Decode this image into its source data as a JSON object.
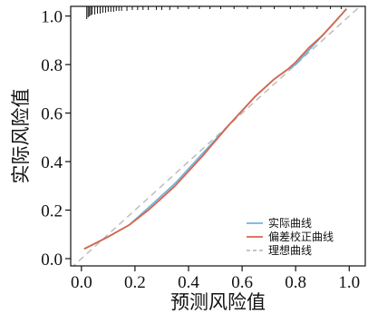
{
  "chart_data": {
    "type": "line",
    "title": "",
    "xlabel": "预测风险值",
    "ylabel": "实际风险值",
    "xlim": [
      -0.04,
      1.06
    ],
    "ylim": [
      -0.03,
      1.04
    ],
    "x_ticks": [
      "0.0",
      "0.2",
      "0.4",
      "0.6",
      "0.8",
      "1.0"
    ],
    "x_tick_values": [
      0.0,
      0.2,
      0.4,
      0.6,
      0.8,
      1.0
    ],
    "y_ticks": [
      "0.0",
      "0.2",
      "0.4",
      "0.6",
      "0.8",
      "1.0"
    ],
    "y_tick_values": [
      0.0,
      0.2,
      0.4,
      0.6,
      0.8,
      1.0
    ],
    "grid": false,
    "legend_position": "bottom-right",
    "series": [
      {
        "name": "实际曲线",
        "color": "#6fb3e0",
        "style": "solid",
        "x": [
          0.01,
          0.1,
          0.18,
          0.25,
          0.3,
          0.35,
          0.45,
          0.55,
          0.65,
          0.72,
          0.77,
          0.8,
          0.85,
          0.9,
          0.95,
          0.99
        ],
        "y": [
          0.04,
          0.09,
          0.14,
          0.21,
          0.26,
          0.31,
          0.43,
          0.55,
          0.67,
          0.74,
          0.78,
          0.8,
          0.86,
          0.92,
          0.98,
          1.03
        ]
      },
      {
        "name": "偏差校正曲线",
        "color": "#d9654b",
        "style": "solid",
        "x": [
          0.01,
          0.1,
          0.18,
          0.25,
          0.3,
          0.35,
          0.45,
          0.55,
          0.65,
          0.72,
          0.77,
          0.8,
          0.85,
          0.9,
          0.95,
          0.99
        ],
        "y": [
          0.04,
          0.09,
          0.14,
          0.2,
          0.25,
          0.3,
          0.42,
          0.55,
          0.67,
          0.74,
          0.78,
          0.81,
          0.87,
          0.92,
          0.98,
          1.03
        ]
      },
      {
        "name": "理想曲线",
        "color": "#bdbdbd",
        "style": "dashed",
        "x": [
          -0.04,
          1.06
        ],
        "y": [
          -0.04,
          1.06
        ]
      }
    ],
    "rug_x": [
      0.02,
      0.025,
      0.03,
      0.035,
      0.04,
      0.05,
      0.06,
      0.07,
      0.08,
      0.09,
      0.1,
      0.11,
      0.12,
      0.13,
      0.14,
      0.15,
      0.17,
      0.19,
      0.21,
      0.23,
      0.25,
      0.28,
      0.3,
      0.33,
      0.36,
      0.4,
      0.44,
      0.48,
      0.52,
      0.57,
      0.62,
      0.67,
      0.72,
      0.78,
      0.83,
      0.88,
      0.93,
      0.97
    ],
    "rug_len": [
      14,
      12,
      11,
      10,
      9,
      9,
      8,
      8,
      7,
      7,
      6,
      6,
      6,
      5,
      5,
      5,
      5,
      4,
      4,
      4,
      4,
      4,
      4,
      4,
      3,
      3,
      3,
      3,
      3,
      3,
      3,
      3,
      3,
      3,
      3,
      3,
      3,
      3
    ]
  }
}
